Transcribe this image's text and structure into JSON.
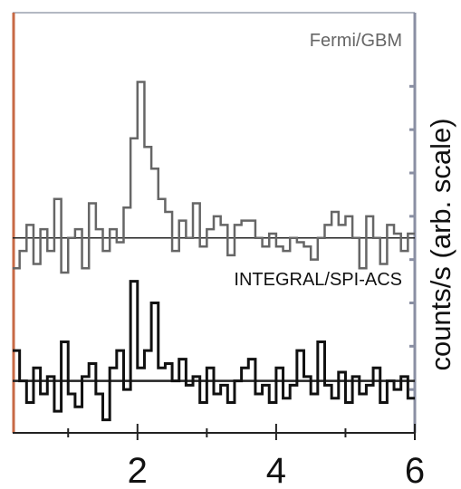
{
  "chart_data": {
    "type": "line",
    "title": "",
    "xlabel": "",
    "ylabel": "counts/s (arb. scale)",
    "xlim": [
      0.2,
      6.0
    ],
    "ylim": [
      -4.5,
      5.2
    ],
    "x_ticks": [
      2,
      4,
      6
    ],
    "x_minor_ticks": [
      1,
      3,
      5
    ],
    "grid": false,
    "y_ticks_labeled": false,
    "bin_width": 0.1,
    "series": [
      {
        "name": "Fermi/GBM",
        "color": "#666666",
        "baseline": 0.0,
        "x": [
          0.2,
          0.3,
          0.4,
          0.5,
          0.6,
          0.7,
          0.8,
          0.9,
          1.0,
          1.1,
          1.2,
          1.3,
          1.4,
          1.5,
          1.6,
          1.7,
          1.8,
          1.9,
          2.0,
          2.1,
          2.2,
          2.3,
          2.4,
          2.5,
          2.6,
          2.7,
          2.8,
          2.9,
          3.0,
          3.1,
          3.2,
          3.3,
          3.4,
          3.5,
          3.6,
          3.7,
          3.8,
          3.9,
          4.0,
          4.1,
          4.2,
          4.3,
          4.4,
          4.5,
          4.6,
          4.7,
          4.8,
          4.9,
          5.0,
          5.1,
          5.2,
          5.3,
          5.4,
          5.5,
          5.6,
          5.7,
          5.8,
          5.9
        ],
        "y": [
          -0.7,
          -0.3,
          0.3,
          -0.6,
          0.2,
          -0.3,
          0.9,
          -0.8,
          0.0,
          0.2,
          -0.7,
          0.8,
          0.2,
          -0.3,
          0.2,
          -0.1,
          0.7,
          2.3,
          3.6,
          2.1,
          1.6,
          0.9,
          0.6,
          -0.3,
          0.4,
          0.0,
          0.8,
          -0.2,
          0.2,
          0.5,
          0.3,
          -0.4,
          0.3,
          0.4,
          0.4,
          0.0,
          -0.2,
          0.1,
          -0.2,
          -0.3,
          0.0,
          -0.1,
          -0.2,
          -0.5,
          0.0,
          0.3,
          0.6,
          0.3,
          0.5,
          0.0,
          -0.7,
          0.5,
          0.0,
          -0.6,
          0.3,
          0.1,
          -0.3,
          0.1
        ]
      },
      {
        "name": "INTEGRAL/SPI-ACS",
        "color": "#111111",
        "baseline": -3.3,
        "x": [
          0.2,
          0.3,
          0.4,
          0.5,
          0.6,
          0.7,
          0.8,
          0.9,
          1.0,
          1.1,
          1.2,
          1.3,
          1.4,
          1.5,
          1.6,
          1.7,
          1.8,
          1.9,
          2.0,
          2.1,
          2.2,
          2.3,
          2.4,
          2.5,
          2.6,
          2.7,
          2.8,
          2.9,
          3.0,
          3.1,
          3.2,
          3.3,
          3.4,
          3.5,
          3.6,
          3.7,
          3.8,
          3.9,
          4.0,
          4.1,
          4.2,
          4.3,
          4.4,
          4.5,
          4.6,
          4.7,
          4.8,
          4.9,
          5.0,
          5.1,
          5.2,
          5.3,
          5.4,
          5.5,
          5.6,
          5.7,
          5.8,
          5.9
        ],
        "y": [
          -2.6,
          -3.3,
          -3.8,
          -3.0,
          -3.6,
          -3.2,
          -4.0,
          -2.4,
          -3.6,
          -3.9,
          -3.2,
          -2.9,
          -3.6,
          -4.2,
          -3.0,
          -2.6,
          -3.5,
          -1.0,
          -3.0,
          -2.6,
          -1.5,
          -3.0,
          -2.9,
          -3.3,
          -2.8,
          -3.4,
          -3.2,
          -3.8,
          -3.0,
          -3.6,
          -3.4,
          -3.8,
          -3.3,
          -3.0,
          -2.8,
          -3.6,
          -3.4,
          -3.8,
          -3.0,
          -3.7,
          -3.4,
          -2.6,
          -3.2,
          -3.6,
          -2.4,
          -3.4,
          -3.7,
          -3.1,
          -3.8,
          -3.2,
          -3.6,
          -3.4,
          -3.0,
          -3.8,
          -3.3,
          -3.5,
          -3.2,
          -3.7
        ]
      }
    ]
  }
}
